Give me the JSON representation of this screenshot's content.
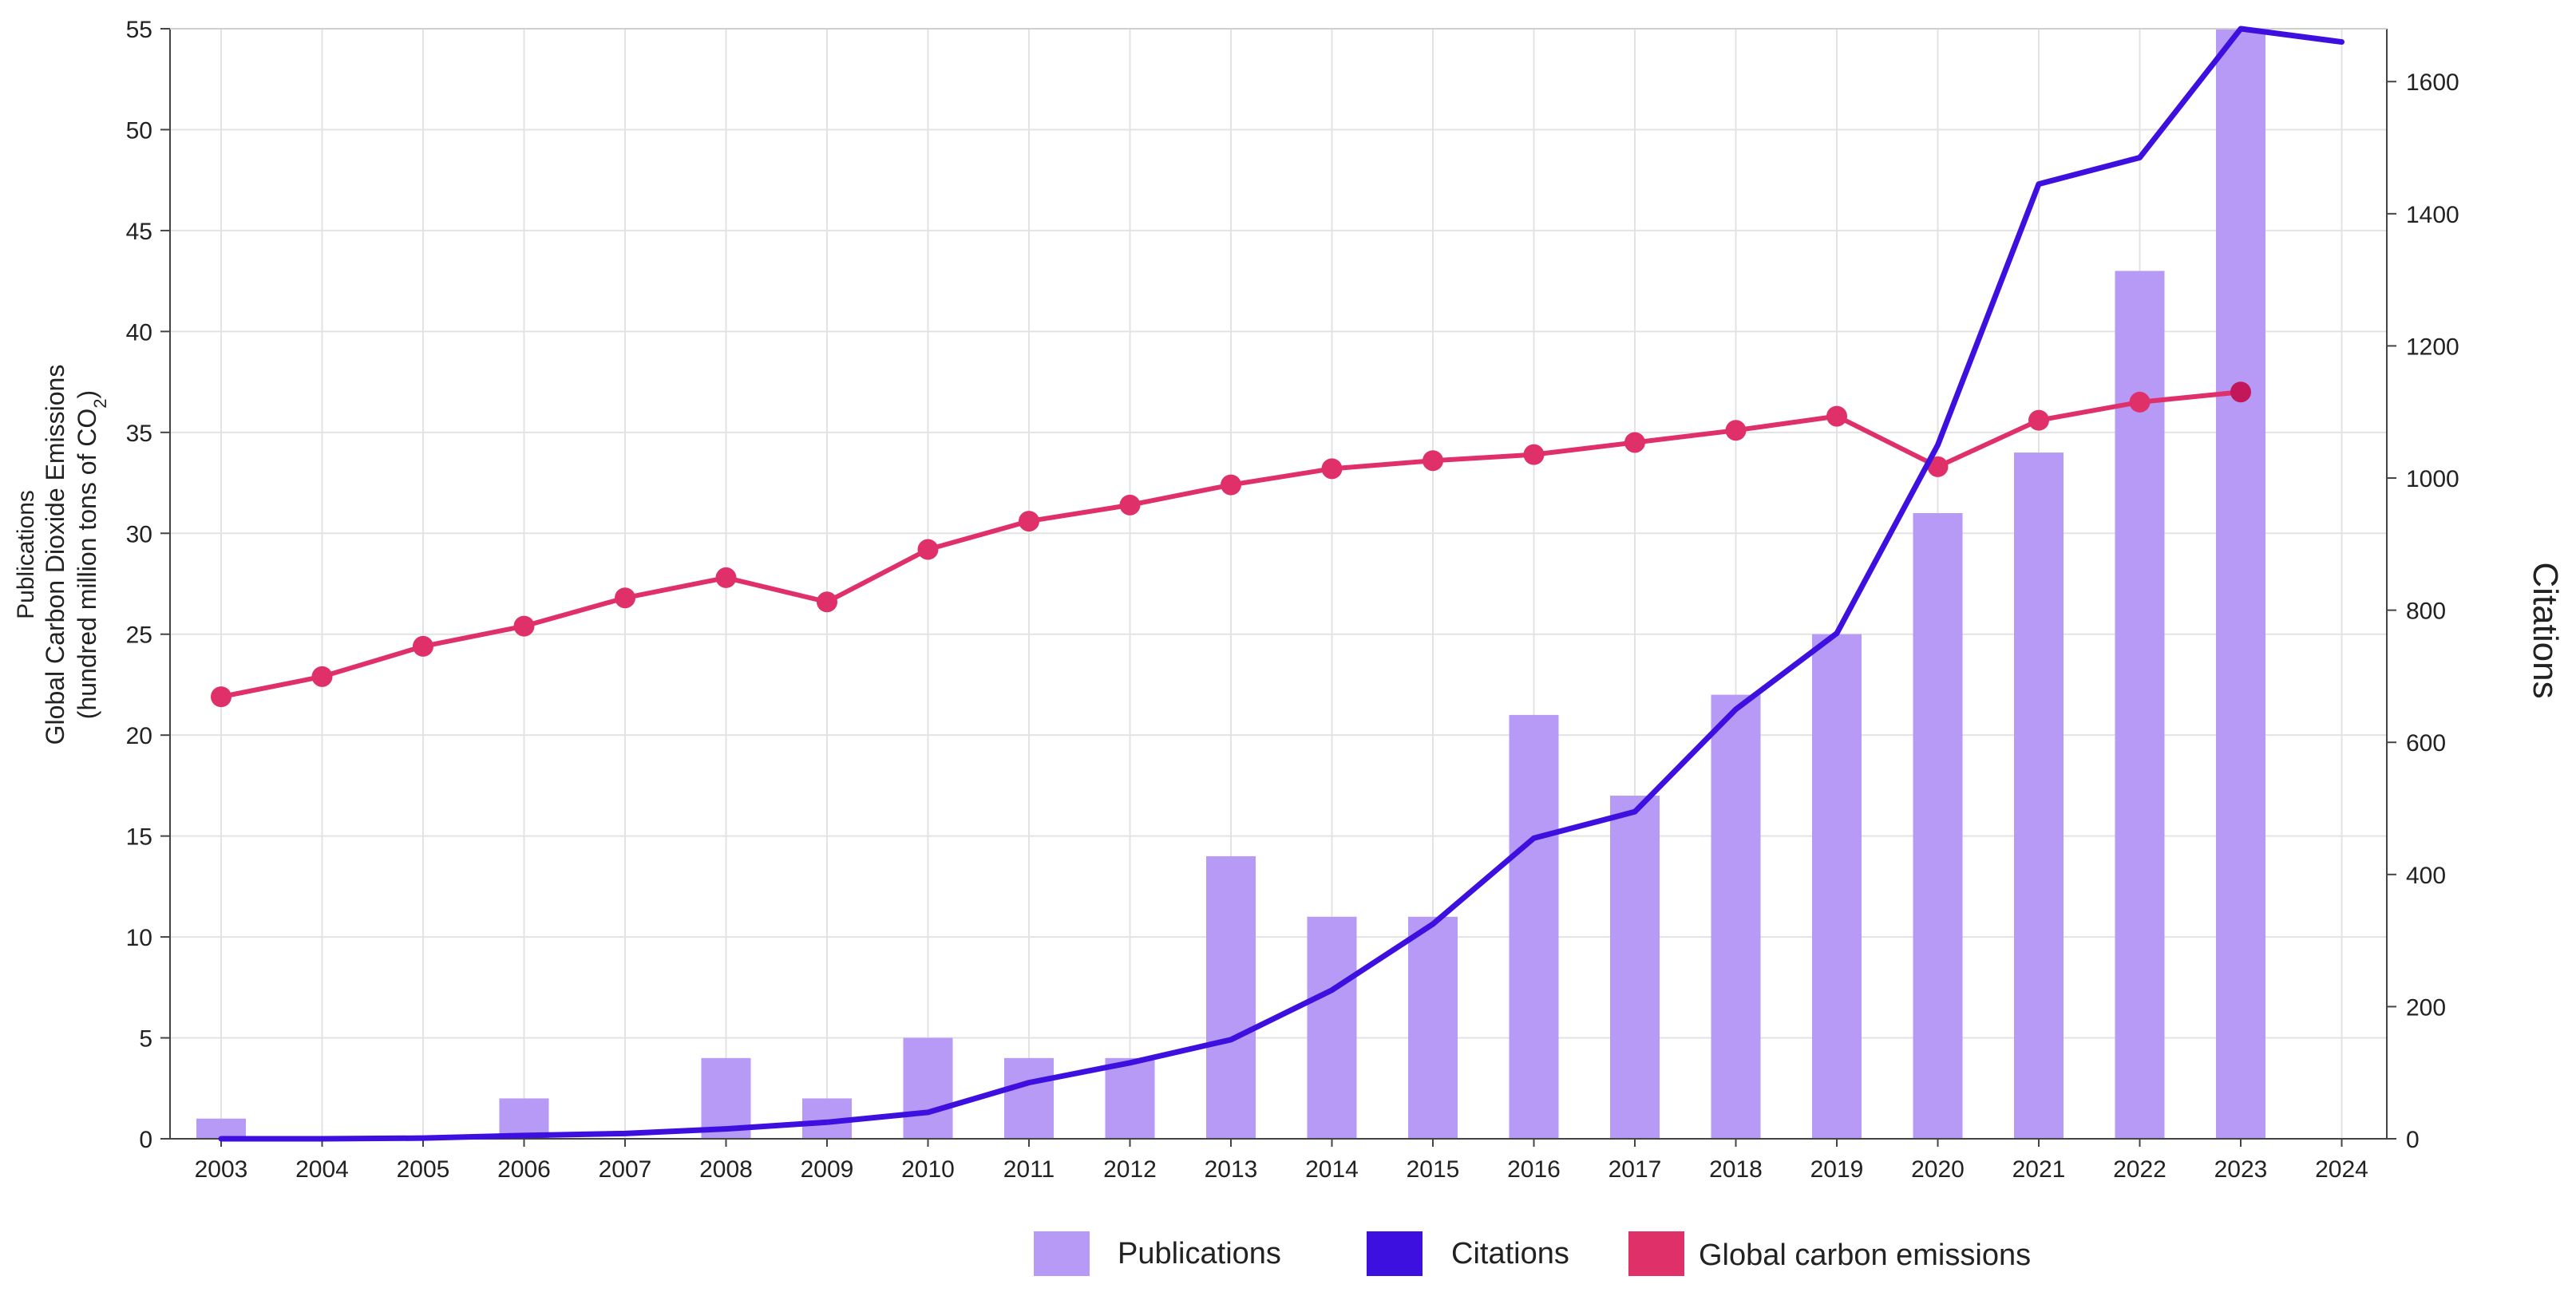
{
  "chart_data": {
    "type": "bar+line",
    "title": "",
    "categories": [
      "2003",
      "2004",
      "2005",
      "2006",
      "2007",
      "2008",
      "2009",
      "2010",
      "2011",
      "2012",
      "2013",
      "2014",
      "2015",
      "2016",
      "2017",
      "2018",
      "2019",
      "2020",
      "2021",
      "2022",
      "2023",
      "2024"
    ],
    "left_axis": {
      "label_line1": "Publications",
      "label_line2": "Global Carbon Dioxide Emissions",
      "label_line3_prefix": "(hundred million tons of CO",
      "label_line3_sub": "2",
      "label_line3_suffix": ")",
      "ylim": [
        0,
        55
      ],
      "ticks": [
        0,
        5,
        10,
        15,
        20,
        25,
        30,
        35,
        40,
        45,
        50,
        55
      ]
    },
    "right_axis": {
      "label": "Citations",
      "ylim": [
        0,
        1680
      ],
      "ticks": [
        0,
        200,
        400,
        600,
        800,
        1000,
        1200,
        1400,
        1600
      ]
    },
    "grid": true,
    "legend_position": "bottom-center",
    "series": [
      {
        "name": "Publications",
        "type": "bar",
        "axis": "left",
        "color": "#b69af5",
        "values": [
          1,
          0,
          0,
          2,
          0,
          4,
          2,
          5,
          4,
          4,
          14,
          11,
          11,
          21,
          17,
          22,
          25,
          31,
          34,
          43,
          55,
          null
        ]
      },
      {
        "name": "Citations",
        "type": "line",
        "axis": "right",
        "color": "#3d10e0",
        "values": [
          0,
          0,
          1,
          5,
          8,
          15,
          25,
          40,
          85,
          115,
          150,
          225,
          325,
          455,
          495,
          650,
          765,
          1050,
          1445,
          1485,
          1680,
          1660
        ]
      },
      {
        "name": "Global carbon emissions",
        "type": "line-markers",
        "axis": "left",
        "color": "#e0306a",
        "marker_color": "#e0306a",
        "last_marker_color": "#c2185b",
        "values": [
          21.9,
          22.9,
          24.4,
          25.4,
          26.8,
          27.8,
          26.6,
          29.2,
          30.6,
          31.4,
          32.4,
          33.2,
          33.6,
          33.9,
          34.5,
          35.1,
          35.8,
          33.3,
          35.6,
          36.5,
          37.0,
          null
        ]
      }
    ],
    "legend": [
      {
        "label": "Publications",
        "color": "#b69af5"
      },
      {
        "label": "Citations",
        "color": "#3d10e0"
      },
      {
        "label": "Global carbon emissions",
        "color": "#e0306a"
      }
    ]
  }
}
